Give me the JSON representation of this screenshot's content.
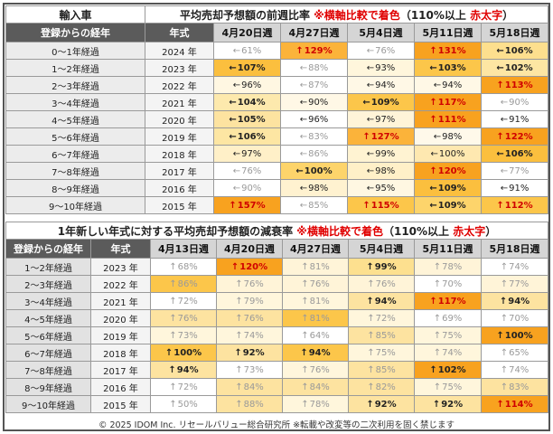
{
  "table1": {
    "title_left": "輸入車",
    "title_main": "平均売却予想額の前週比率",
    "title_note": "※横軸比較で着色",
    "title_paren_open": "（110%以上 ",
    "title_paren_red": "赤太字",
    "title_paren_close": "）",
    "col_header_age": "登録からの経年",
    "col_header_year": "年式",
    "week_headers": [
      "4月20日週",
      "4月27日週",
      "5月4日週",
      "5月11日週",
      "5月18日週"
    ],
    "rows": [
      {
        "age": "0～1年経過",
        "year": "2024 年",
        "cells": [
          {
            "arrow": "←",
            "value": "61%",
            "bg": "#ffffff",
            "style": "faint"
          },
          {
            "arrow": "↑",
            "value": "129%",
            "bg": "#fbb33a",
            "style": "red"
          },
          {
            "arrow": "←",
            "value": "76%",
            "bg": "#ffffff",
            "style": "faint"
          },
          {
            "arrow": "↑",
            "value": "131%",
            "bg": "#f8a21f",
            "style": "red"
          },
          {
            "arrow": "←",
            "value": "106%",
            "bg": "#fddf8e",
            "style": "bold"
          }
        ]
      },
      {
        "age": "1～2年経過",
        "year": "2023 年",
        "cells": [
          {
            "arrow": "←",
            "value": "107%",
            "bg": "#fbbf3e",
            "style": "bold"
          },
          {
            "arrow": "←",
            "value": "88%",
            "bg": "#ffffff",
            "style": "faint"
          },
          {
            "arrow": "←",
            "value": "93%",
            "bg": "#fff6dc",
            "style": "val"
          },
          {
            "arrow": "←",
            "value": "103%",
            "bg": "#fcc64a",
            "style": "bold"
          },
          {
            "arrow": "←",
            "value": "102%",
            "bg": "#fde6a3",
            "style": "bold"
          }
        ]
      },
      {
        "age": "2～3年経過",
        "year": "2022 年",
        "cells": [
          {
            "arrow": "←",
            "value": "96%",
            "bg": "#fff7e2",
            "style": "val"
          },
          {
            "arrow": "←",
            "value": "87%",
            "bg": "#ffffff",
            "style": "faint"
          },
          {
            "arrow": "←",
            "value": "94%",
            "bg": "#fff8e6",
            "style": "val"
          },
          {
            "arrow": "←",
            "value": "94%",
            "bg": "#fff8e6",
            "style": "val"
          },
          {
            "arrow": "↑",
            "value": "113%",
            "bg": "#f8a21f",
            "style": "red"
          }
        ]
      },
      {
        "age": "3～4年経過",
        "year": "2021 年",
        "cells": [
          {
            "arrow": "←",
            "value": "104%",
            "bg": "#fde9ad",
            "style": "bold"
          },
          {
            "arrow": "←",
            "value": "90%",
            "bg": "#fff8e6",
            "style": "val"
          },
          {
            "arrow": "←",
            "value": "109%",
            "bg": "#fcc64a",
            "style": "bold"
          },
          {
            "arrow": "↑",
            "value": "117%",
            "bg": "#f8a21f",
            "style": "red"
          },
          {
            "arrow": "←",
            "value": "90%",
            "bg": "#ffffff",
            "style": "faint"
          }
        ]
      },
      {
        "age": "4～5年経過",
        "year": "2020 年",
        "cells": [
          {
            "arrow": "←",
            "value": "105%",
            "bg": "#fde3a0",
            "style": "bold"
          },
          {
            "arrow": "←",
            "value": "96%",
            "bg": "#ffffff",
            "style": "val"
          },
          {
            "arrow": "←",
            "value": "97%",
            "bg": "#fff4d8",
            "style": "val"
          },
          {
            "arrow": "↑",
            "value": "111%",
            "bg": "#f8a21f",
            "style": "red"
          },
          {
            "arrow": "←",
            "value": "91%",
            "bg": "#ffffff",
            "style": "val"
          }
        ]
      },
      {
        "age": "5～6年経過",
        "year": "2019 年",
        "cells": [
          {
            "arrow": "←",
            "value": "106%",
            "bg": "#fde6a3",
            "style": "bold"
          },
          {
            "arrow": "←",
            "value": "83%",
            "bg": "#ffffff",
            "style": "faint"
          },
          {
            "arrow": "↑",
            "value": "127%",
            "bg": "#fbb33a",
            "style": "red"
          },
          {
            "arrow": "←",
            "value": "98%",
            "bg": "#fff9ea",
            "style": "val"
          },
          {
            "arrow": "↑",
            "value": "122%",
            "bg": "#f8a21f",
            "style": "red"
          }
        ]
      },
      {
        "age": "6～7年経過",
        "year": "2018 年",
        "cells": [
          {
            "arrow": "←",
            "value": "97%",
            "bg": "#fff0c8",
            "style": "val"
          },
          {
            "arrow": "←",
            "value": "86%",
            "bg": "#ffffff",
            "style": "faint"
          },
          {
            "arrow": "←",
            "value": "99%",
            "bg": "#fff3d2",
            "style": "val"
          },
          {
            "arrow": "←",
            "value": "100%",
            "bg": "#fee8b0",
            "style": "val"
          },
          {
            "arrow": "←",
            "value": "106%",
            "bg": "#fbbf3e",
            "style": "bold"
          }
        ]
      },
      {
        "age": "7～8年経過",
        "year": "2017 年",
        "cells": [
          {
            "arrow": "←",
            "value": "76%",
            "bg": "#ffffff",
            "style": "faint"
          },
          {
            "arrow": "←",
            "value": "100%",
            "bg": "#fdd46b",
            "style": "bold"
          },
          {
            "arrow": "←",
            "value": "98%",
            "bg": "#fff0c8",
            "style": "val"
          },
          {
            "arrow": "↑",
            "value": "120%",
            "bg": "#f8a21f",
            "style": "red"
          },
          {
            "arrow": "←",
            "value": "77%",
            "bg": "#ffffff",
            "style": "faint"
          }
        ]
      },
      {
        "age": "8～9年経過",
        "year": "2016 年",
        "cells": [
          {
            "arrow": "←",
            "value": "90%",
            "bg": "#ffffff",
            "style": "faint"
          },
          {
            "arrow": "←",
            "value": "98%",
            "bg": "#fff2d0",
            "style": "val"
          },
          {
            "arrow": "←",
            "value": "95%",
            "bg": "#fff7e2",
            "style": "val"
          },
          {
            "arrow": "←",
            "value": "109%",
            "bg": "#fbbf3e",
            "style": "bold"
          },
          {
            "arrow": "←",
            "value": "91%",
            "bg": "#ffffff",
            "style": "val"
          }
        ]
      },
      {
        "age": "9～10年経過",
        "year": "2015 年",
        "cells": [
          {
            "arrow": "↑",
            "value": "157%",
            "bg": "#f8a21f",
            "style": "red"
          },
          {
            "arrow": "←",
            "value": "85%",
            "bg": "#ffffff",
            "style": "faint"
          },
          {
            "arrow": "↑",
            "value": "115%",
            "bg": "#fcc64a",
            "style": "red"
          },
          {
            "arrow": "←",
            "value": "109%",
            "bg": "#fdd46b",
            "style": "bold"
          },
          {
            "arrow": "↑",
            "value": "112%",
            "bg": "#fcc64a",
            "style": "red"
          }
        ]
      }
    ]
  },
  "table2": {
    "title_main": "1年新しい年式に対する平均売却予想額の減衰率",
    "title_note": "※横軸比較で着色",
    "title_paren_open": "（110%以上 ",
    "title_paren_red": "赤太字",
    "title_paren_close": "）",
    "col_header_age": "登録からの経年",
    "col_header_year": "年式",
    "week_headers": [
      "4月13日週",
      "4月20日週",
      "4月27日週",
      "5月4日週",
      "5月11日週",
      "5月18日週"
    ],
    "rows": [
      {
        "age": "1～2年経過",
        "year": "2023 年",
        "cells": [
          {
            "arrow": "↑",
            "value": "68%",
            "bg": "#ffffff",
            "style": "faint"
          },
          {
            "arrow": "↑",
            "value": "120%",
            "bg": "#f8a21f",
            "style": "red"
          },
          {
            "arrow": "↑",
            "value": "81%",
            "bg": "#fff4d8",
            "style": "faint"
          },
          {
            "arrow": "↑",
            "value": "99%",
            "bg": "#fde08f",
            "style": "bold"
          },
          {
            "arrow": "↑",
            "value": "78%",
            "bg": "#fff4d8",
            "style": "faint"
          },
          {
            "arrow": "↑",
            "value": "74%",
            "bg": "#ffffff",
            "style": "faint"
          }
        ]
      },
      {
        "age": "2～3年経過",
        "year": "2022 年",
        "cells": [
          {
            "arrow": "↑",
            "value": "86%",
            "bg": "#fcc64a",
            "style": "faint"
          },
          {
            "arrow": "↑",
            "value": "76%",
            "bg": "#fff4d8",
            "style": "faint"
          },
          {
            "arrow": "↑",
            "value": "76%",
            "bg": "#fff4d8",
            "style": "faint"
          },
          {
            "arrow": "↑",
            "value": "76%",
            "bg": "#fff4d8",
            "style": "faint"
          },
          {
            "arrow": "↑",
            "value": "70%",
            "bg": "#ffffff",
            "style": "faint"
          },
          {
            "arrow": "↑",
            "value": "77%",
            "bg": "#fff4d8",
            "style": "faint"
          }
        ]
      },
      {
        "age": "3～4年経過",
        "year": "2021 年",
        "cells": [
          {
            "arrow": "↑",
            "value": "72%",
            "bg": "#ffffff",
            "style": "faint"
          },
          {
            "arrow": "↑",
            "value": "79%",
            "bg": "#fff6dc",
            "style": "faint"
          },
          {
            "arrow": "↑",
            "value": "81%",
            "bg": "#fff6dc",
            "style": "faint"
          },
          {
            "arrow": "↑",
            "value": "94%",
            "bg": "#fde3a0",
            "style": "bold"
          },
          {
            "arrow": "↑",
            "value": "117%",
            "bg": "#f8a21f",
            "style": "red"
          },
          {
            "arrow": "↑",
            "value": "94%",
            "bg": "#fde3a0",
            "style": "bold"
          }
        ]
      },
      {
        "age": "4～5年経過",
        "year": "2020 年",
        "cells": [
          {
            "arrow": "↑",
            "value": "76%",
            "bg": "#fde3a0",
            "style": "faint"
          },
          {
            "arrow": "↑",
            "value": "76%",
            "bg": "#fde3a0",
            "style": "faint"
          },
          {
            "arrow": "↑",
            "value": "81%",
            "bg": "#fcc64a",
            "style": "faint"
          },
          {
            "arrow": "↑",
            "value": "72%",
            "bg": "#fff6dc",
            "style": "faint"
          },
          {
            "arrow": "↑",
            "value": "69%",
            "bg": "#ffffff",
            "style": "faint"
          },
          {
            "arrow": "↑",
            "value": "70%",
            "bg": "#ffffff",
            "style": "faint"
          }
        ]
      },
      {
        "age": "5～6年経過",
        "year": "2019 年",
        "cells": [
          {
            "arrow": "↑",
            "value": "73%",
            "bg": "#fff6dc",
            "style": "faint"
          },
          {
            "arrow": "↑",
            "value": "74%",
            "bg": "#fff6dc",
            "style": "faint"
          },
          {
            "arrow": "↑",
            "value": "64%",
            "bg": "#ffffff",
            "style": "faint"
          },
          {
            "arrow": "↑",
            "value": "85%",
            "bg": "#fde3a0",
            "style": "faint"
          },
          {
            "arrow": "↑",
            "value": "75%",
            "bg": "#fff6dc",
            "style": "faint"
          },
          {
            "arrow": "↑",
            "value": "100%",
            "bg": "#f8a21f",
            "style": "bold"
          }
        ]
      },
      {
        "age": "6～7年経過",
        "year": "2018 年",
        "cells": [
          {
            "arrow": "↑",
            "value": "100%",
            "bg": "#fcc64a",
            "style": "bold"
          },
          {
            "arrow": "↑",
            "value": "92%",
            "bg": "#fde3a0",
            "style": "bold"
          },
          {
            "arrow": "↑",
            "value": "94%",
            "bg": "#fcc64a",
            "style": "bold"
          },
          {
            "arrow": "↑",
            "value": "75%",
            "bg": "#fff6dc",
            "style": "faint"
          },
          {
            "arrow": "↑",
            "value": "74%",
            "bg": "#fff6dc",
            "style": "faint"
          },
          {
            "arrow": "↑",
            "value": "65%",
            "bg": "#ffffff",
            "style": "faint"
          }
        ]
      },
      {
        "age": "7～8年経過",
        "year": "2017 年",
        "cells": [
          {
            "arrow": "↑",
            "value": "94%",
            "bg": "#fde3a0",
            "style": "bold"
          },
          {
            "arrow": "↑",
            "value": "73%",
            "bg": "#ffffff",
            "style": "faint"
          },
          {
            "arrow": "↑",
            "value": "76%",
            "bg": "#fff6dc",
            "style": "faint"
          },
          {
            "arrow": "↑",
            "value": "85%",
            "bg": "#fde3a0",
            "style": "faint"
          },
          {
            "arrow": "↑",
            "value": "102%",
            "bg": "#f8a21f",
            "style": "bold"
          },
          {
            "arrow": "↑",
            "value": "74%",
            "bg": "#ffffff",
            "style": "faint"
          }
        ]
      },
      {
        "age": "8～9年経過",
        "year": "2016 年",
        "cells": [
          {
            "arrow": "↑",
            "value": "72%",
            "bg": "#ffffff",
            "style": "faint"
          },
          {
            "arrow": "↑",
            "value": "84%",
            "bg": "#fde3a0",
            "style": "faint"
          },
          {
            "arrow": "↑",
            "value": "84%",
            "bg": "#fde3a0",
            "style": "faint"
          },
          {
            "arrow": "↑",
            "value": "82%",
            "bg": "#fde3a0",
            "style": "faint"
          },
          {
            "arrow": "↑",
            "value": "75%",
            "bg": "#fff6dc",
            "style": "faint"
          },
          {
            "arrow": "↑",
            "value": "83%",
            "bg": "#fde3a0",
            "style": "faint"
          }
        ]
      },
      {
        "age": "9～10年経過",
        "year": "2015 年",
        "cells": [
          {
            "arrow": "↑",
            "value": "50%",
            "bg": "#ffffff",
            "style": "faint"
          },
          {
            "arrow": "↑",
            "value": "88%",
            "bg": "#fde3a0",
            "style": "faint"
          },
          {
            "arrow": "↑",
            "value": "78%",
            "bg": "#fff6dc",
            "style": "faint"
          },
          {
            "arrow": "↑",
            "value": "92%",
            "bg": "#fde3a0",
            "style": "bold"
          },
          {
            "arrow": "↑",
            "value": "92%",
            "bg": "#fde3a0",
            "style": "bold"
          },
          {
            "arrow": "↑",
            "value": "114%",
            "bg": "#f8a21f",
            "style": "red"
          }
        ]
      }
    ]
  },
  "footer": "© 2025 IDOM Inc. リセールバリュー総合研究所 ※転載や改変等の二次利用を固く禁じます"
}
